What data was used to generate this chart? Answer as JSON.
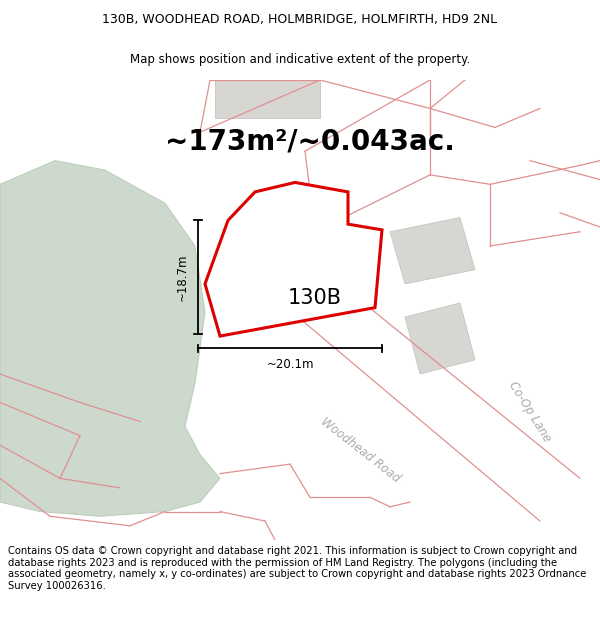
{
  "title_line1": "130B, WOODHEAD ROAD, HOLMBRIDGE, HOLMFIRTH, HD9 2NL",
  "title_line2": "Map shows position and indicative extent of the property.",
  "area_text": "~173m²/~0.043ac.",
  "property_label": "130B",
  "dim_vertical": "~18.7m",
  "dim_horizontal": "~20.1m",
  "road_label1": "Woodhead Road",
  "road_label2": "Co-Op Lane",
  "footer_text": "Contains OS data © Crown copyright and database right 2021. This information is subject to Crown copyright and database rights 2023 and is reproduced with the permission of HM Land Registry. The polygons (including the associated geometry, namely x, y co-ordinates) are subject to Crown copyright and database rights 2023 Ordnance Survey 100026316.",
  "map_bg": "#f7f5f2",
  "green_poly_color": "#cdd9cd",
  "green_poly_edge": "#b8ccb8",
  "property_fill": "#ffffff",
  "property_edge": "#dd0000",
  "road_line_color": "#e09090",
  "gray_fill": "#d8d6d2",
  "gray_edge": "#c0bebb",
  "footer_fontsize": 7.2,
  "title_fontsize": 9.0,
  "subtitle_fontsize": 8.5,
  "area_fontsize": 20
}
